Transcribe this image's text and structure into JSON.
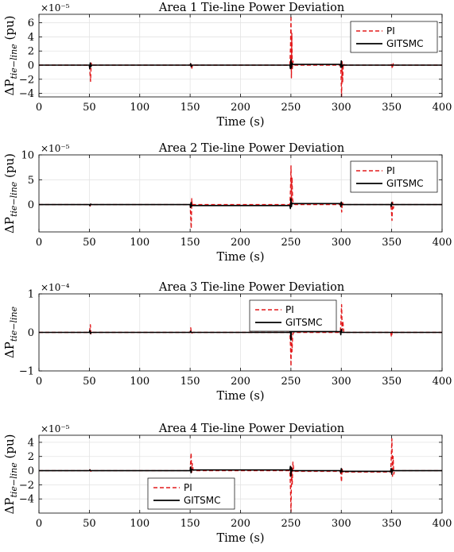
{
  "chart_data": [
    {
      "type": "line",
      "title": "Area 1 Tie-line Power Deviation",
      "xlabel": "Time (s)",
      "ylabel": "ΔP_tie−line (pu)",
      "ylabel_main": "ΔP",
      "ylabel_sub": "tie−line",
      "ylabel_unit": " (pu)",
      "multiplier": "×10⁻⁵",
      "xlim": [
        0,
        400
      ],
      "ylim": [
        -4.5,
        7.2
      ],
      "xticks": [
        0,
        50,
        100,
        150,
        200,
        250,
        300,
        350,
        400
      ],
      "yticks": [
        -4,
        -2,
        0,
        2,
        4,
        6
      ],
      "grid": true,
      "legend_position": "top-right",
      "series": [
        {
          "name": "PI",
          "style": "dashed",
          "color": "#e31a1c",
          "points": [
            [
              0,
              0
            ],
            [
              50,
              0
            ],
            [
              50.6,
              -1.0
            ],
            [
              51.2,
              -2.3
            ],
            [
              51.8,
              0.3
            ],
            [
              52.5,
              -0.1
            ],
            [
              53.5,
              0
            ],
            [
              150,
              0
            ],
            [
              150.8,
              0.4
            ],
            [
              151.5,
              -0.6
            ],
            [
              152.5,
              0.1
            ],
            [
              153.5,
              0
            ],
            [
              249,
              0
            ],
            [
              249.6,
              2.5
            ],
            [
              250.1,
              7.0
            ],
            [
              250.5,
              -1.8
            ],
            [
              250.9,
              4.5
            ],
            [
              251.4,
              -0.5
            ],
            [
              252,
              0.6
            ],
            [
              253,
              0.1
            ],
            [
              254,
              0
            ],
            [
              299,
              0
            ],
            [
              299.7,
              -1.0
            ],
            [
              300.3,
              -4.4
            ],
            [
              300.8,
              0.5
            ],
            [
              301.3,
              -2.5
            ],
            [
              302,
              0.2
            ],
            [
              303,
              0
            ],
            [
              349,
              0
            ],
            [
              349.8,
              0.3
            ],
            [
              350.6,
              -0.5
            ],
            [
              351.5,
              0.2
            ],
            [
              352.5,
              0
            ],
            [
              400,
              0
            ]
          ]
        },
        {
          "name": "GITSMC",
          "style": "solid",
          "color": "#000000",
          "points": [
            [
              0,
              0
            ],
            [
              50,
              0
            ],
            [
              50.4,
              -0.5
            ],
            [
              50.9,
              0.3
            ],
            [
              51.5,
              -0.2
            ],
            [
              52.5,
              0
            ],
            [
              150,
              0
            ],
            [
              150.5,
              0.2
            ],
            [
              151,
              -0.2
            ],
            [
              152,
              0
            ],
            [
              249,
              0
            ],
            [
              249.5,
              -0.5
            ],
            [
              250,
              0.8
            ],
            [
              250.5,
              -0.4
            ],
            [
              251,
              0.3
            ],
            [
              252,
              0.1
            ],
            [
              299,
              0.1
            ],
            [
              299.5,
              -0.3
            ],
            [
              300,
              0.6
            ],
            [
              300.5,
              -0.3
            ],
            [
              301.5,
              0
            ],
            [
              400,
              0
            ]
          ]
        }
      ]
    },
    {
      "type": "line",
      "title": "Area 2 Tie-line Power Deviation",
      "xlabel": "Time (s)",
      "ylabel": "ΔP_tie−line (pu)",
      "ylabel_main": "ΔP",
      "ylabel_sub": "tie−line",
      "ylabel_unit": " (pu)",
      "multiplier": "×10⁻⁵",
      "xlim": [
        0,
        400
      ],
      "ylim": [
        -5.5,
        10
      ],
      "xticks": [
        0,
        50,
        100,
        150,
        200,
        250,
        300,
        350,
        400
      ],
      "yticks": [
        0,
        5,
        10
      ],
      "grid": true,
      "legend_position": "top-right",
      "series": [
        {
          "name": "PI",
          "style": "dashed",
          "color": "#e31a1c",
          "points": [
            [
              0,
              0
            ],
            [
              50,
              0
            ],
            [
              50.8,
              -0.3
            ],
            [
              51.6,
              0.1
            ],
            [
              52.5,
              0
            ],
            [
              150,
              0
            ],
            [
              150.6,
              -2.5
            ],
            [
              151.1,
              -4.8
            ],
            [
              151.6,
              1.2
            ],
            [
              152.2,
              -0.4
            ],
            [
              153,
              0
            ],
            [
              249,
              0
            ],
            [
              249.6,
              3.0
            ],
            [
              250.1,
              7.8
            ],
            [
              250.6,
              -0.5
            ],
            [
              251.1,
              5.5
            ],
            [
              251.7,
              1.0
            ],
            [
              252.5,
              0.2
            ],
            [
              254,
              0
            ],
            [
              299,
              0
            ],
            [
              299.7,
              0.6
            ],
            [
              300.4,
              -1.5
            ],
            [
              301,
              0.5
            ],
            [
              302,
              0
            ],
            [
              349,
              0
            ],
            [
              349.7,
              -1.0
            ],
            [
              350.3,
              -3.2
            ],
            [
              350.9,
              0.5
            ],
            [
              351.6,
              -0.8
            ],
            [
              352.5,
              0
            ],
            [
              400,
              0
            ]
          ]
        },
        {
          "name": "GITSMC",
          "style": "solid",
          "color": "#000000",
          "points": [
            [
              0,
              0
            ],
            [
              50,
              0
            ],
            [
              50.5,
              -0.2
            ],
            [
              51.2,
              0.1
            ],
            [
              52,
              0
            ],
            [
              150,
              0
            ],
            [
              150.4,
              -0.6
            ],
            [
              150.9,
              0.4
            ],
            [
              151.5,
              -0.3
            ],
            [
              152,
              -0.2
            ],
            [
              249,
              -0.2
            ],
            [
              249.5,
              -0.8
            ],
            [
              250,
              1.2
            ],
            [
              250.5,
              -0.4
            ],
            [
              251,
              0.3
            ],
            [
              252,
              0.2
            ],
            [
              299,
              0.2
            ],
            [
              299.5,
              -0.4
            ],
            [
              300,
              0.5
            ],
            [
              300.6,
              0
            ],
            [
              349,
              0
            ],
            [
              349.5,
              -0.4
            ],
            [
              350,
              0.4
            ],
            [
              350.6,
              0
            ],
            [
              400,
              0
            ]
          ]
        }
      ]
    },
    {
      "type": "line",
      "title": "Area 3 Tie-line Power Deviation",
      "xlabel": "Time (s)",
      "ylabel": "ΔP_tie−line",
      "ylabel_main": "ΔP",
      "ylabel_sub": "tie−line",
      "ylabel_unit": "",
      "multiplier": "×10⁻⁴",
      "xlim": [
        0,
        400
      ],
      "ylim": [
        -1,
        1
      ],
      "xticks": [
        0,
        50,
        100,
        150,
        200,
        250,
        300,
        350,
        400
      ],
      "yticks": [
        -1,
        0,
        1
      ],
      "grid": true,
      "legend_position": "top-center",
      "series": [
        {
          "name": "PI",
          "style": "dashed",
          "color": "#e31a1c",
          "points": [
            [
              0,
              0
            ],
            [
              50,
              0
            ],
            [
              50.5,
              0.08
            ],
            [
              51,
              0.2
            ],
            [
              51.6,
              -0.04
            ],
            [
              52.5,
              0
            ],
            [
              150,
              0
            ],
            [
              150.6,
              0.12
            ],
            [
              151.3,
              -0.03
            ],
            [
              152.5,
              0
            ],
            [
              249,
              0
            ],
            [
              249.6,
              -0.35
            ],
            [
              250.1,
              -0.88
            ],
            [
              250.6,
              0.1
            ],
            [
              251.1,
              -0.5
            ],
            [
              251.8,
              -0.05
            ],
            [
              253,
              0
            ],
            [
              299,
              0
            ],
            [
              299.7,
              0.3
            ],
            [
              300.3,
              0.72
            ],
            [
              300.9,
              0.05
            ],
            [
              301.5,
              0.3
            ],
            [
              302.5,
              0
            ],
            [
              349,
              0
            ],
            [
              349.8,
              -0.12
            ],
            [
              350.6,
              0.03
            ],
            [
              351.5,
              0
            ],
            [
              400,
              0
            ]
          ]
        },
        {
          "name": "GITSMC",
          "style": "solid",
          "color": "#000000",
          "points": [
            [
              0,
              0
            ],
            [
              50,
              0
            ],
            [
              50.5,
              0.05
            ],
            [
              51,
              -0.03
            ],
            [
              52,
              0
            ],
            [
              150,
              0
            ],
            [
              150.5,
              0.03
            ],
            [
              151.2,
              0
            ],
            [
              249,
              0
            ],
            [
              249.5,
              0.1
            ],
            [
              250,
              -0.2
            ],
            [
              250.5,
              0.08
            ],
            [
              251.2,
              0.02
            ],
            [
              252,
              0.02
            ],
            [
              299,
              0.02
            ],
            [
              299.5,
              -0.06
            ],
            [
              300,
              0.08
            ],
            [
              300.6,
              0
            ],
            [
              400,
              0
            ]
          ]
        }
      ]
    },
    {
      "type": "line",
      "title": "Area 4 Tie-line Power Deviation",
      "xlabel": "Time (s)",
      "ylabel": "ΔP_tie−line (pu)",
      "ylabel_main": "ΔP",
      "ylabel_sub": "tie−line",
      "ylabel_unit": " (pu)",
      "multiplier": "×10⁻⁵",
      "xlim": [
        0,
        400
      ],
      "ylim": [
        -6,
        5
      ],
      "xticks": [
        0,
        50,
        100,
        150,
        200,
        250,
        300,
        350,
        400
      ],
      "yticks": [
        -4,
        -2,
        0,
        2,
        4
      ],
      "grid": true,
      "legend_position": "bottom-left",
      "series": [
        {
          "name": "PI",
          "style": "dashed",
          "color": "#e31a1c",
          "points": [
            [
              0,
              0
            ],
            [
              50,
              0
            ],
            [
              50.6,
              0.15
            ],
            [
              51.3,
              -0.1
            ],
            [
              52.5,
              0
            ],
            [
              150,
              0
            ],
            [
              150.5,
              1.2
            ],
            [
              151,
              2.5
            ],
            [
              151.5,
              -0.3
            ],
            [
              152.1,
              1.0
            ],
            [
              153,
              0.1
            ],
            [
              154,
              0
            ],
            [
              249,
              0
            ],
            [
              249.6,
              -2.5
            ],
            [
              250.1,
              -5.8
            ],
            [
              250.7,
              0.5
            ],
            [
              251.3,
              -2.0
            ],
            [
              252,
              1.2
            ],
            [
              252.8,
              0.2
            ],
            [
              254,
              -0.1
            ],
            [
              299,
              -0.1
            ],
            [
              299.6,
              -0.5
            ],
            [
              300.2,
              -1.6
            ],
            [
              300.8,
              0.3
            ],
            [
              301.5,
              -0.3
            ],
            [
              302.5,
              -0.2
            ],
            [
              349,
              -0.2
            ],
            [
              349.6,
              1.8
            ],
            [
              350.2,
              4.5
            ],
            [
              350.8,
              -0.8
            ],
            [
              351.4,
              2.0
            ],
            [
              352.1,
              -0.5
            ],
            [
              353,
              0
            ],
            [
              400,
              0
            ]
          ]
        },
        {
          "name": "GITSMC",
          "style": "solid",
          "color": "#000000",
          "points": [
            [
              0,
              0
            ],
            [
              50,
              0
            ],
            [
              50.5,
              0.1
            ],
            [
              51.2,
              0
            ],
            [
              150,
              0
            ],
            [
              150.4,
              0.5
            ],
            [
              150.9,
              -0.3
            ],
            [
              151.5,
              0.2
            ],
            [
              152.5,
              0.1
            ],
            [
              249,
              0.1
            ],
            [
              249.5,
              0.6
            ],
            [
              250,
              -0.8
            ],
            [
              250.5,
              0.4
            ],
            [
              251.2,
              0
            ],
            [
              299,
              0
            ],
            [
              299.5,
              -0.3
            ],
            [
              300,
              0.3
            ],
            [
              300.6,
              -0.1
            ],
            [
              349,
              -0.1
            ],
            [
              349.5,
              0.3
            ],
            [
              350,
              -0.5
            ],
            [
              350.6,
              0.1
            ],
            [
              351.5,
              0
            ],
            [
              400,
              0
            ]
          ]
        }
      ]
    }
  ]
}
